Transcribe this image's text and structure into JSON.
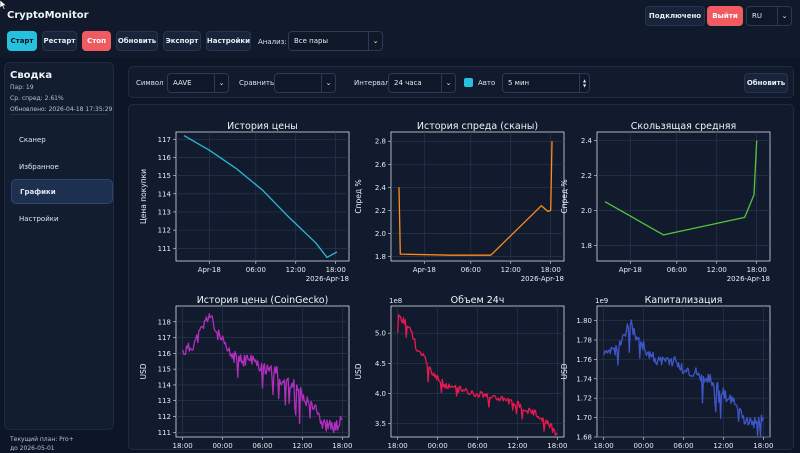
{
  "app": {
    "title": "CryptoMonitor",
    "status": "Подключено",
    "logout": "Выйти",
    "lang": "RU"
  },
  "toolbar": {
    "start": "Старт",
    "restart": "Рестарт",
    "stop": "Стоп",
    "refresh": "Обновить",
    "export": "Экспорт",
    "settings": "Настройки",
    "analysis_label": "Анализ:",
    "analysis_value": "Все пары"
  },
  "sidebar": {
    "title": "Сводка",
    "pairs": "Пар: 19",
    "avg_spread": "Ср. спред: 2.61%",
    "updated": "Обновлено: 2026-04-18 17:35:29",
    "items": [
      {
        "label": "Сканер"
      },
      {
        "label": "Избранное"
      },
      {
        "label": "Графики"
      },
      {
        "label": "Настройки"
      }
    ],
    "plan": "Текущий план: Pro+",
    "plan_until": "до 2026-05-01"
  },
  "filters": {
    "symbol_label": "Символ",
    "symbol_value": "AAVE",
    "compare_label": "Сравнить:",
    "compare_value": "",
    "interval_label": "Интервал:",
    "interval_value": "24 часа",
    "auto_label": "Авто",
    "auto_value": "5 мин",
    "refresh": "Обновить"
  },
  "colors": {
    "accent": "#27c1e0",
    "danger": "#ef5b61"
  },
  "chart_data": [
    {
      "type": "line",
      "title": "История цены",
      "ylabel": "Цена покупки",
      "color": "#2bb8d6",
      "xlim": [
        0,
        26
      ],
      "ylim": [
        110.3,
        117.4
      ],
      "yticks": [
        111,
        112,
        113,
        114,
        115,
        116,
        117
      ],
      "xticks": [
        {
          "x": 5,
          "label": "Apr-18"
        },
        {
          "x": 12,
          "label": "06:00"
        },
        {
          "x": 18,
          "label": "12:00"
        },
        {
          "x": 24,
          "label": "18:00"
        }
      ],
      "xnote": "2026-Apr-18",
      "points": [
        [
          1.2,
          117.2
        ],
        [
          5,
          116.4
        ],
        [
          9,
          115.4
        ],
        [
          13,
          114.2
        ],
        [
          17,
          112.7
        ],
        [
          21,
          111.3
        ],
        [
          22.7,
          110.5
        ],
        [
          24.2,
          110.8
        ]
      ]
    },
    {
      "type": "line",
      "title": "История спреда (сканы)",
      "ylabel": "Спред %",
      "color": "#ff8c1a",
      "xlim": [
        0,
        26
      ],
      "ylim": [
        1.76,
        2.88
      ],
      "yticks": [
        1.8,
        2.0,
        2.2,
        2.4,
        2.6,
        2.8
      ],
      "xticks": [
        {
          "x": 5,
          "label": "Apr-18"
        },
        {
          "x": 12,
          "label": "06:00"
        },
        {
          "x": 18,
          "label": "12:00"
        },
        {
          "x": 24,
          "label": "18:00"
        }
      ],
      "xnote": "2026-Apr-18",
      "points": [
        [
          1.2,
          2.4
        ],
        [
          1.4,
          1.82
        ],
        [
          9,
          1.81
        ],
        [
          15,
          1.81
        ],
        [
          22.6,
          2.24
        ],
        [
          23.6,
          2.19
        ],
        [
          24.0,
          2.2
        ],
        [
          24.2,
          2.8
        ]
      ]
    },
    {
      "type": "line",
      "title": "Скользящая средняя",
      "ylabel": "Спред %",
      "color": "#55c43e",
      "xlim": [
        0,
        26
      ],
      "ylim": [
        1.71,
        2.45
      ],
      "yticks": [
        1.8,
        2.0,
        2.2,
        2.4
      ],
      "xticks": [
        {
          "x": 5,
          "label": "Apr-18"
        },
        {
          "x": 12,
          "label": "06:00"
        },
        {
          "x": 18,
          "label": "12:00"
        },
        {
          "x": 24,
          "label": "18:00"
        }
      ],
      "xnote": "2026-Apr-18",
      "points": [
        [
          1.2,
          2.05
        ],
        [
          10,
          1.86
        ],
        [
          22.2,
          1.96
        ],
        [
          23.6,
          2.09
        ],
        [
          24.0,
          2.4
        ]
      ]
    },
    {
      "type": "line",
      "title": "История цены (CoinGecko)",
      "ylabel": "USD",
      "color": "#b32ec0",
      "xlim": [
        0,
        26
      ],
      "ylim": [
        110.7,
        119.0
      ],
      "yticks": [
        111,
        112,
        113,
        114,
        115,
        116,
        117,
        118
      ],
      "xticks": [
        {
          "x": 1,
          "label": "18:00"
        },
        {
          "x": 7,
          "label": "00:00"
        },
        {
          "x": 13,
          "label": "06:00"
        },
        {
          "x": 19,
          "label": "12:00"
        },
        {
          "x": 25,
          "label": "18:00"
        }
      ],
      "anchors": [
        [
          1,
          116.1
        ],
        [
          2,
          116.3
        ],
        [
          3,
          116.8
        ],
        [
          4,
          117.6
        ],
        [
          5,
          118.5
        ],
        [
          6,
          117.4
        ],
        [
          7,
          116.7
        ],
        [
          8,
          116.0
        ],
        [
          9,
          115.7
        ],
        [
          10,
          115.5
        ],
        [
          11,
          115.7
        ],
        [
          12,
          115.4
        ],
        [
          13,
          115.1
        ],
        [
          14,
          114.8
        ],
        [
          15,
          114.9
        ],
        [
          16,
          114.2
        ],
        [
          17,
          114.3
        ],
        [
          18,
          113.9
        ],
        [
          19,
          113.3
        ],
        [
          20,
          112.9
        ],
        [
          21,
          112.8
        ],
        [
          22,
          111.5
        ],
        [
          23,
          111.4
        ],
        [
          24,
          111.3
        ],
        [
          25,
          111.8
        ]
      ],
      "seed": 11,
      "noise": 0.8
    },
    {
      "type": "line",
      "title": "Объем 24ч",
      "ylabel": "USD",
      "exponent": "1e8",
      "color": "#e8194f",
      "xlim": [
        0,
        26
      ],
      "ylim": [
        3.28,
        5.45
      ],
      "yticks": [
        3.5,
        4.0,
        4.5,
        5.0
      ],
      "xticks": [
        {
          "x": 1,
          "label": "18:00"
        },
        {
          "x": 7,
          "label": "00:00"
        },
        {
          "x": 13,
          "label": "06:00"
        },
        {
          "x": 19,
          "label": "12:00"
        },
        {
          "x": 25,
          "label": "18:00"
        }
      ],
      "anchors": [
        [
          1,
          5.3
        ],
        [
          2,
          5.2
        ],
        [
          3,
          5.05
        ],
        [
          4,
          4.7
        ],
        [
          5,
          4.6
        ],
        [
          6,
          4.35
        ],
        [
          7,
          4.25
        ],
        [
          8,
          4.15
        ],
        [
          9,
          4.1
        ],
        [
          10,
          4.08
        ],
        [
          11,
          4.05
        ],
        [
          12,
          4.02
        ],
        [
          13,
          4.0
        ],
        [
          14,
          3.98
        ],
        [
          15,
          3.95
        ],
        [
          16,
          3.93
        ],
        [
          17,
          3.9
        ],
        [
          18,
          3.85
        ],
        [
          19,
          3.83
        ],
        [
          20,
          3.75
        ],
        [
          21,
          3.7
        ],
        [
          22,
          3.65
        ],
        [
          23,
          3.58
        ],
        [
          24,
          3.45
        ],
        [
          25,
          3.33
        ]
      ],
      "seed": 23,
      "noise": 0.12
    },
    {
      "type": "line",
      "title": "Капитализация",
      "ylabel": "USD",
      "exponent": "1e9",
      "color": "#3f55c8",
      "xlim": [
        0,
        26
      ],
      "ylim": [
        1.68,
        1.815
      ],
      "yticks": [
        1.68,
        1.7,
        1.72,
        1.74,
        1.76,
        1.78,
        1.8
      ],
      "xticks": [
        {
          "x": 1,
          "label": "18:00"
        },
        {
          "x": 7,
          "label": "00:00"
        },
        {
          "x": 13,
          "label": "06:00"
        },
        {
          "x": 19,
          "label": "12:00"
        },
        {
          "x": 25,
          "label": "18:00"
        }
      ],
      "anchors": [
        [
          1,
          1.762
        ],
        [
          2,
          1.766
        ],
        [
          3,
          1.772
        ],
        [
          4,
          1.785
        ],
        [
          5,
          1.798
        ],
        [
          6,
          1.782
        ],
        [
          7,
          1.773
        ],
        [
          8,
          1.765
        ],
        [
          9,
          1.76
        ],
        [
          10,
          1.757
        ],
        [
          11,
          1.76
        ],
        [
          12,
          1.756
        ],
        [
          13,
          1.75
        ],
        [
          14,
          1.746
        ],
        [
          15,
          1.748
        ],
        [
          16,
          1.738
        ],
        [
          17,
          1.74
        ],
        [
          18,
          1.732
        ],
        [
          19,
          1.725
        ],
        [
          20,
          1.718
        ],
        [
          21,
          1.716
        ],
        [
          22,
          1.698
        ],
        [
          23,
          1.696
        ],
        [
          24,
          1.694
        ],
        [
          25,
          1.7
        ]
      ],
      "seed": 37,
      "noise": 0.012
    }
  ]
}
